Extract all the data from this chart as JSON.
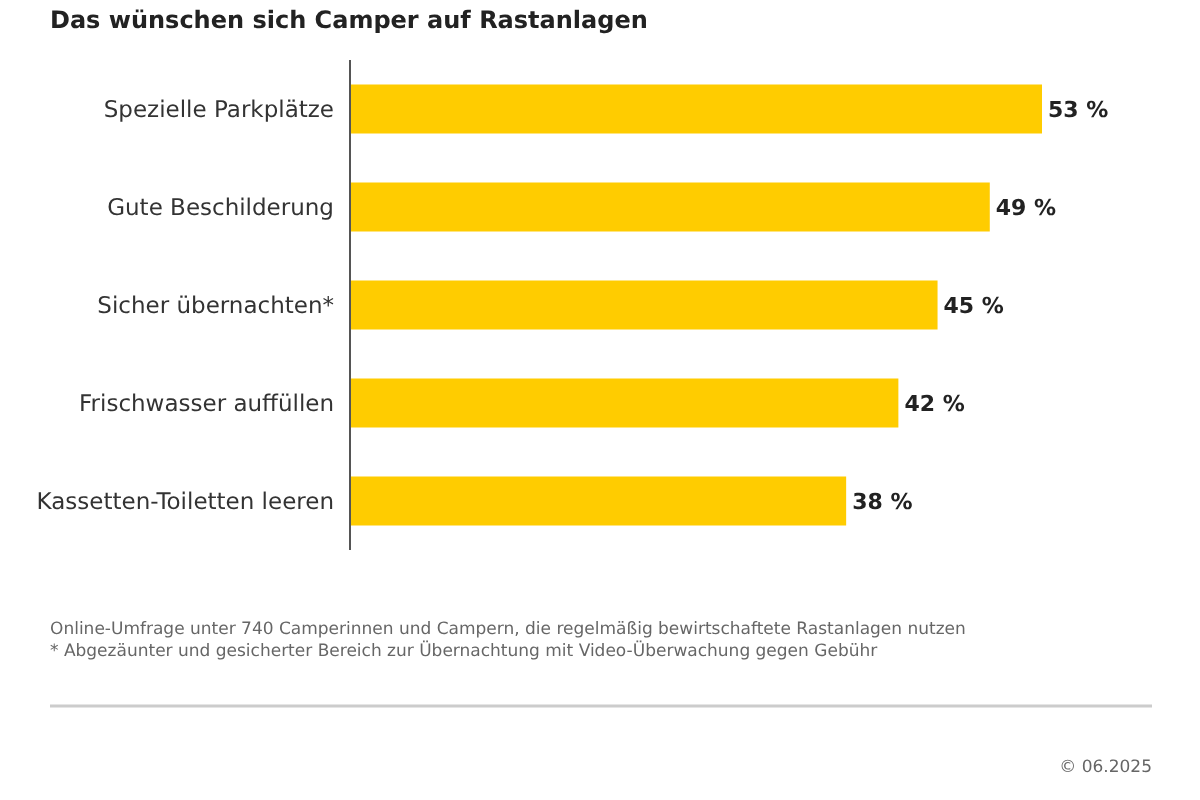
{
  "chart_data": {
    "type": "bar",
    "orientation": "horizontal",
    "title": "Das wünschen sich Camper auf Rastanlagen",
    "categories": [
      "Spezielle Parkplätze",
      "Gute Beschilderung",
      "Sicher übernachten*",
      "Frischwasser auffüllen",
      "Kassetten-Toiletten leeren"
    ],
    "values": [
      53,
      49,
      45,
      42,
      38
    ],
    "value_labels": [
      "53 %",
      "49 %",
      "45 %",
      "42 %",
      "38 %"
    ],
    "color": "#ffcc00",
    "tick_labels": "y",
    "annotations": [
      "Online-Umfrage unter 740 Camperinnen und Campern, die regelmäßig bewirtschaftete Rastanlagen nutzen",
      "* Abgezäunter und gesicherter Bereich zur Übernachtung mit Video-Überwachung gegen Gebühr",
      "© 06.2025"
    ]
  }
}
